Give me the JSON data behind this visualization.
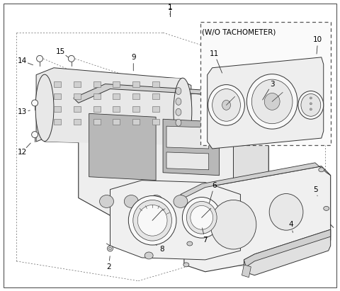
{
  "bg_color": "#ffffff",
  "line_color": "#333333",
  "dashed_color": "#666666",
  "text_color": "#000000",
  "fig_width": 4.8,
  "fig_height": 4.11,
  "dpi": 100,
  "border_lw": 0.8,
  "part_lw": 0.6,
  "fill_light": "#e8e8e8",
  "fill_mid": "#d0d0d0",
  "fill_dark": "#b8b8b8",
  "fill_white": "#f8f8f8",
  "font_size": 7.5,
  "font_size_inset": 7.0,
  "inset_label": "(W/O TACHOMETER)"
}
